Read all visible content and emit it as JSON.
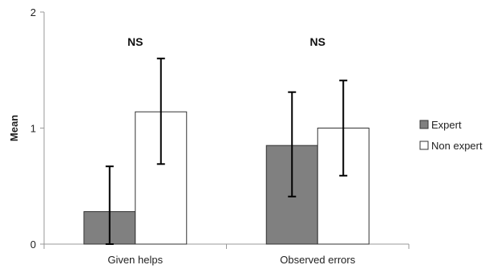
{
  "chart_data": {
    "type": "bar",
    "categories": [
      "Given helps",
      "Observed errors"
    ],
    "series": [
      {
        "name": "Expert",
        "values": [
          0.28,
          0.85
        ],
        "error_low": [
          0.0,
          0.41
        ],
        "error_high": [
          0.67,
          1.31
        ],
        "color": "#808080"
      },
      {
        "name": "Non expert",
        "values": [
          1.14,
          1.0
        ],
        "error_low": [
          0.69,
          0.59
        ],
        "error_high": [
          1.6,
          1.41
        ],
        "color": "#ffffff"
      }
    ],
    "xlabel": "",
    "ylabel": "Mean",
    "ylim": [
      0,
      2
    ],
    "yticks": [
      0,
      1,
      2
    ],
    "annotations": [
      "NS",
      "NS"
    ],
    "grid": false,
    "legend_position": "right"
  }
}
